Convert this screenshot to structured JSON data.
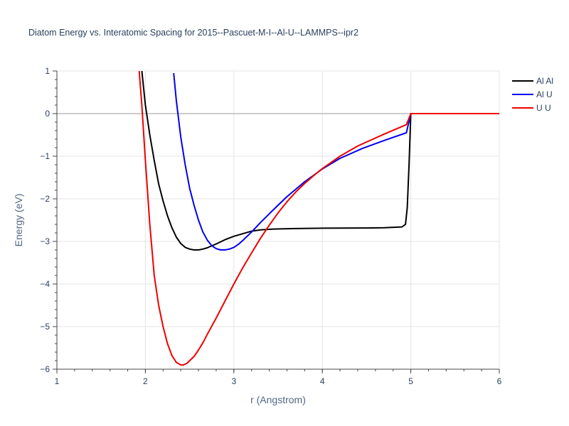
{
  "chart_data": {
    "type": "line",
    "title": "Diatom Energy vs. Interatomic Spacing for 2015--Pascuet-M-I--Al-U--LAMMPS--ipr2",
    "xlabel": "r (Angstrom)",
    "ylabel": "Energy (eV)",
    "xlim": [
      1,
      6
    ],
    "ylim": [
      -6,
      1
    ],
    "xticks": [
      1,
      2,
      3,
      4,
      5,
      6
    ],
    "yticks": [
      1,
      0,
      -1,
      -2,
      -3,
      -4,
      -5,
      -6
    ],
    "xtick_labels": [
      "1",
      "2",
      "3",
      "4",
      "5",
      "6"
    ],
    "ytick_labels": [
      "1",
      "0",
      "−1",
      "−2",
      "−3",
      "−4",
      "−5",
      "−6"
    ],
    "grid": true,
    "legend_position": "top-right",
    "series": [
      {
        "name": "Al Al",
        "color": "#000000",
        "x": [
          1.96,
          2.0,
          2.05,
          2.1,
          2.15,
          2.2,
          2.25,
          2.3,
          2.35,
          2.4,
          2.45,
          2.5,
          2.55,
          2.6,
          2.65,
          2.7,
          2.8,
          2.9,
          3.0,
          3.1,
          3.2,
          3.3,
          3.45,
          3.65,
          4.0,
          4.5,
          4.7,
          4.9,
          4.94,
          4.96,
          4.98,
          5.0,
          5.5,
          6.0
        ],
        "y": [
          1.0,
          0.2,
          -0.5,
          -1.1,
          -1.65,
          -2.05,
          -2.4,
          -2.68,
          -2.9,
          -3.05,
          -3.14,
          -3.18,
          -3.2,
          -3.2,
          -3.18,
          -3.15,
          -3.06,
          -2.96,
          -2.88,
          -2.82,
          -2.76,
          -2.73,
          -2.71,
          -2.7,
          -2.69,
          -2.685,
          -2.68,
          -2.66,
          -2.6,
          -2.2,
          -1.2,
          0.0,
          0.0,
          0.0
        ]
      },
      {
        "name": "Al U",
        "color": "#0000ee",
        "x": [
          2.32,
          2.35,
          2.4,
          2.45,
          2.5,
          2.55,
          2.6,
          2.65,
          2.7,
          2.75,
          2.8,
          2.85,
          2.9,
          2.95,
          3.0,
          3.05,
          3.1,
          3.2,
          3.3,
          3.45,
          3.6,
          3.8,
          4.0,
          4.2,
          4.45,
          4.7,
          4.95,
          5.0,
          5.5,
          6.0
        ],
        "y": [
          0.95,
          0.3,
          -0.55,
          -1.2,
          -1.75,
          -2.15,
          -2.5,
          -2.78,
          -2.97,
          -3.1,
          -3.17,
          -3.2,
          -3.2,
          -3.18,
          -3.14,
          -3.07,
          -2.98,
          -2.78,
          -2.56,
          -2.25,
          -1.95,
          -1.6,
          -1.3,
          -1.05,
          -0.82,
          -0.63,
          -0.45,
          0.0,
          0.0,
          0.0
        ]
      },
      {
        "name": "U U",
        "color": "#ee0000",
        "x": [
          1.93,
          1.96,
          2.0,
          2.05,
          2.1,
          2.15,
          2.2,
          2.25,
          2.3,
          2.35,
          2.4,
          2.43,
          2.47,
          2.5,
          2.55,
          2.6,
          2.65,
          2.7,
          2.8,
          2.9,
          3.0,
          3.1,
          3.2,
          3.3,
          3.4,
          3.5,
          3.6,
          3.7,
          3.8,
          3.9,
          4.0,
          4.2,
          4.4,
          4.7,
          4.95,
          5.0,
          5.5,
          6.0
        ],
        "y": [
          1.0,
          0.2,
          -1.1,
          -2.6,
          -3.8,
          -4.5,
          -5.0,
          -5.4,
          -5.68,
          -5.84,
          -5.9,
          -5.9,
          -5.86,
          -5.8,
          -5.7,
          -5.55,
          -5.38,
          -5.18,
          -4.8,
          -4.4,
          -4.0,
          -3.62,
          -3.27,
          -2.93,
          -2.62,
          -2.33,
          -2.07,
          -1.84,
          -1.64,
          -1.46,
          -1.29,
          -1.0,
          -0.76,
          -0.48,
          -0.26,
          0.0,
          0.0,
          0.0
        ]
      }
    ]
  }
}
